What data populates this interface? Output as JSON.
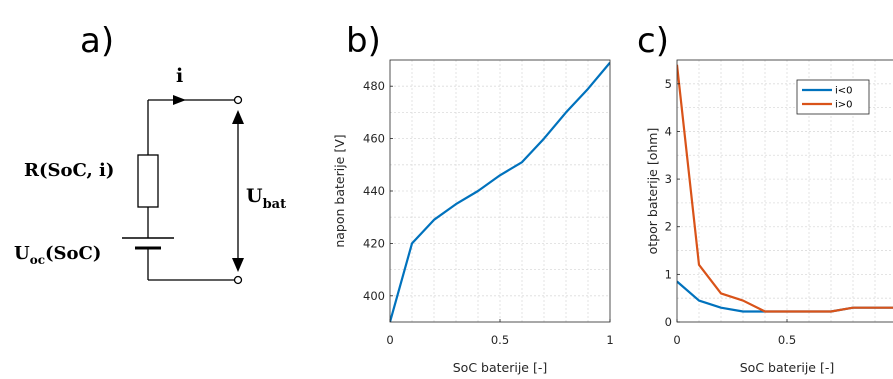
{
  "panels": {
    "a": "a)",
    "b": "b)",
    "c": "c)"
  },
  "circuit": {
    "current_label": "i",
    "resistor_label": "R(SoC, i)",
    "source_label_main": "U",
    "source_label_sub": "oc",
    "source_label_arg": "(SoC)",
    "voltage_label_main": "U",
    "voltage_label_sub": "bat"
  },
  "chart_data": [
    {
      "type": "line",
      "xlabel": "SoC baterije [-]",
      "ylabel": "napon baterije [V]",
      "xlim": [
        0,
        1
      ],
      "ylim": [
        390,
        490
      ],
      "xticks": [
        0,
        0.5,
        1
      ],
      "xtick_labels": [
        "0",
        "0.5",
        "1"
      ],
      "yticks": [
        400,
        420,
        440,
        460,
        480
      ],
      "ytick_labels": [
        "400",
        "420",
        "440",
        "460",
        "480"
      ],
      "grid": true,
      "series": [
        {
          "color": "#0072BD",
          "x": [
            0,
            0.1,
            0.2,
            0.3,
            0.4,
            0.5,
            0.6,
            0.7,
            0.8,
            0.9,
            1.0
          ],
          "y": [
            390,
            420,
            429,
            435,
            440,
            446,
            451,
            460,
            470,
            479,
            489
          ]
        }
      ]
    },
    {
      "type": "line",
      "xlabel": "SoC baterije [-]",
      "ylabel": "otpor baterije [ohm]",
      "xlim": [
        0,
        1
      ],
      "ylim": [
        0,
        5.5
      ],
      "xticks": [
        0,
        0.5
      ],
      "xtick_labels": [
        "0",
        "0.5"
      ],
      "yticks": [
        0,
        1,
        2,
        3,
        4,
        5
      ],
      "ytick_labels": [
        "0",
        "1",
        "2",
        "3",
        "4",
        "5"
      ],
      "grid": true,
      "legend_position": "top-right",
      "series": [
        {
          "name": "i<0",
          "color": "#0072BD",
          "x": [
            0,
            0.1,
            0.2,
            0.3,
            0.4,
            0.5,
            0.6,
            0.7,
            0.8,
            0.9,
            1.0
          ],
          "y": [
            0.85,
            0.45,
            0.3,
            0.22,
            0.22,
            0.22,
            0.22,
            0.22,
            0.3,
            0.3,
            0.3
          ]
        },
        {
          "name": "i>0",
          "color": "#D95319",
          "x": [
            0,
            0.1,
            0.2,
            0.3,
            0.4,
            0.5,
            0.6,
            0.7,
            0.8,
            0.9,
            1.0
          ],
          "y": [
            5.4,
            1.2,
            0.6,
            0.45,
            0.22,
            0.22,
            0.22,
            0.22,
            0.3,
            0.3,
            0.3
          ]
        }
      ]
    }
  ]
}
